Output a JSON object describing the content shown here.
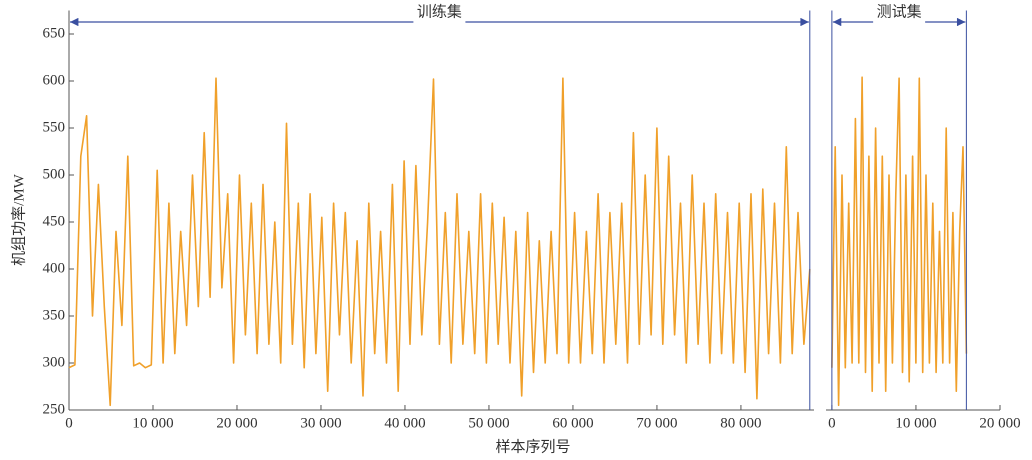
{
  "chart_data": [
    {
      "type": "line",
      "annotation": "训练集",
      "x_label": "样本序列号",
      "y_label": "机组功率/MW",
      "color": "#f0a02a",
      "xlim": [
        0,
        88700
      ],
      "ylim": [
        250,
        675
      ],
      "xticks": [
        0,
        {
          "value": 10000,
          "label": "10 000"
        },
        {
          "value": 20000,
          "label": "20 000"
        },
        {
          "value": 30000,
          "label": "30 000"
        },
        {
          "value": 40000,
          "label": "40 000"
        },
        {
          "value": 50000,
          "label": "50 000"
        },
        {
          "value": 60000,
          "label": "60 000"
        },
        {
          "value": 70000,
          "label": "70 000"
        },
        {
          "value": 80000,
          "label": "80 000"
        }
      ],
      "yticks": [
        250,
        300,
        350,
        400,
        450,
        500,
        550,
        600,
        650
      ],
      "x": [
        0,
        700,
        1400,
        2100,
        2800,
        3500,
        4200,
        4900,
        5600,
        6300,
        7000,
        7700,
        8400,
        9100,
        9800,
        10500,
        11200,
        11900,
        12600,
        13300,
        14000,
        14700,
        15400,
        16100,
        16800,
        17500,
        18200,
        18900,
        19600,
        20300,
        21000,
        21700,
        22400,
        23100,
        23800,
        24500,
        25200,
        25900,
        26600,
        27300,
        28000,
        28700,
        29400,
        30100,
        30800,
        31500,
        32200,
        32900,
        33600,
        34300,
        35000,
        35700,
        36400,
        37100,
        37800,
        38500,
        39200,
        39900,
        40600,
        41300,
        42000,
        42700,
        43400,
        44100,
        44800,
        45500,
        46200,
        46900,
        47600,
        48300,
        49000,
        49700,
        50400,
        51100,
        51800,
        52500,
        53200,
        53900,
        54600,
        55300,
        56000,
        56700,
        57400,
        58100,
        58800,
        59500,
        60200,
        60900,
        61600,
        62300,
        63000,
        63700,
        64400,
        65100,
        65800,
        66500,
        67200,
        67900,
        68600,
        69300,
        70000,
        70700,
        71400,
        72100,
        72800,
        73500,
        74200,
        74900,
        75600,
        76300,
        77000,
        77700,
        78400,
        79100,
        79800,
        80500,
        81200,
        81900,
        82600,
        83300,
        84000,
        84700,
        85400,
        86100,
        86800,
        87500,
        88200
      ],
      "values": [
        295,
        298,
        520,
        563,
        350,
        490,
        360,
        255,
        440,
        340,
        520,
        297,
        300,
        295,
        298,
        505,
        300,
        470,
        310,
        440,
        340,
        500,
        360,
        545,
        370,
        603,
        380,
        480,
        300,
        500,
        330,
        470,
        310,
        490,
        320,
        450,
        300,
        555,
        320,
        470,
        295,
        480,
        310,
        455,
        270,
        470,
        330,
        460,
        300,
        430,
        265,
        470,
        310,
        440,
        300,
        490,
        270,
        515,
        320,
        510,
        330,
        450,
        602,
        320,
        460,
        300,
        480,
        320,
        440,
        310,
        480,
        300,
        470,
        320,
        455,
        300,
        440,
        265,
        460,
        290,
        430,
        300,
        440,
        310,
        603,
        300,
        460,
        300,
        440,
        310,
        480,
        300,
        460,
        320,
        470,
        300,
        545,
        320,
        500,
        330,
        550,
        320,
        520,
        330,
        470,
        300,
        500,
        320,
        470,
        300,
        480,
        310,
        460,
        300,
        470,
        290,
        480,
        262,
        485,
        310,
        470,
        300,
        530,
        310,
        460,
        320,
        400
      ]
    },
    {
      "type": "line",
      "annotation": "测试集",
      "color": "#f0a02a",
      "xlim": [
        -700,
        20000
      ],
      "ylim": [
        250,
        675
      ],
      "xticks": [
        0,
        {
          "value": 10000,
          "label": "10 000"
        },
        {
          "value": 20000,
          "label": "20 000"
        }
      ],
      "x": [
        0,
        400,
        800,
        1200,
        1600,
        2000,
        2400,
        2800,
        3200,
        3600,
        4000,
        4400,
        4800,
        5200,
        5600,
        6000,
        6400,
        6800,
        7200,
        7600,
        8000,
        8400,
        8800,
        9200,
        9600,
        10000,
        10400,
        10800,
        11200,
        11600,
        12000,
        12400,
        12800,
        13200,
        13600,
        14000,
        14400,
        14800,
        15200,
        15600,
        16000
      ],
      "values": [
        295,
        530,
        255,
        500,
        295,
        470,
        300,
        560,
        300,
        604,
        290,
        520,
        270,
        550,
        300,
        520,
        270,
        500,
        300,
        480,
        603,
        290,
        500,
        280,
        520,
        300,
        603,
        290,
        500,
        300,
        470,
        290,
        440,
        300,
        550,
        300,
        460,
        270,
        440,
        530,
        310
      ]
    }
  ]
}
